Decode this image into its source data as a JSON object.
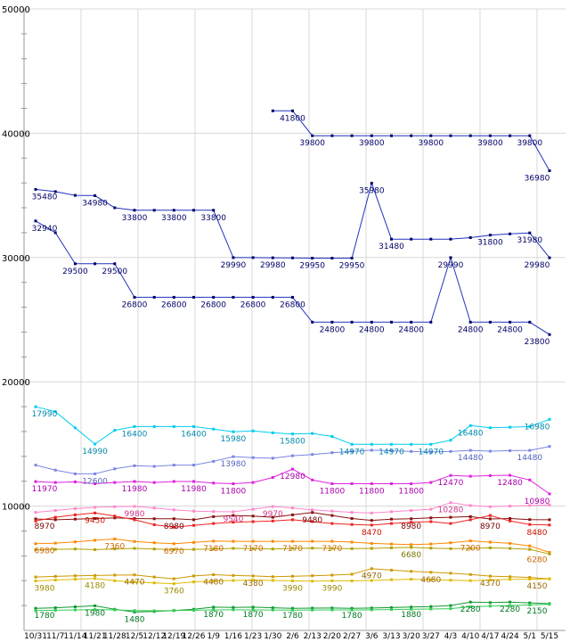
{
  "chart_data": {
    "type": "line",
    "title": "",
    "ylim": [
      0,
      50000
    ],
    "grid": true,
    "colors": {
      "grid": "#d8d8d8",
      "axis": "#999999",
      "text": "#000000"
    },
    "y_ticks": [
      10000,
      20000,
      30000,
      40000,
      50000
    ],
    "x_labels": [
      "10/31",
      "11/7",
      "11/14",
      "11/21",
      "11/28",
      "12/5",
      "12/12",
      "12/19",
      "12/26",
      "1/9",
      "1/16",
      "1/23",
      "1/30",
      "2/6",
      "2/13",
      "2/20",
      "2/27",
      "3/6",
      "3/13",
      "3/20",
      "3/27",
      "4/3",
      "4/10",
      "4/17",
      "4/24",
      "5/1",
      "5/15"
    ],
    "series": [
      {
        "name": "navy-a",
        "color": "#2233bb",
        "marker_color": "#000066",
        "label_color": "#000066",
        "values": [
          35480,
          35300,
          35000,
          34980,
          34000,
          33800,
          33800,
          33800,
          33800,
          33800,
          29990,
          29990,
          29980,
          29970,
          29950,
          29950,
          29950,
          35980,
          31480,
          31480,
          31480,
          31480,
          31600,
          31800,
          31900,
          31980,
          29980
        ],
        "labels": {
          "0": "35480",
          "3": "34980",
          "5": "33800",
          "7": "33800",
          "9": "33800",
          "10": "29990",
          "12": "29980",
          "14": "29950",
          "16": "29950",
          "17": "35980",
          "18": "31480",
          "23": "31800",
          "25": "31980",
          "26": "29980"
        }
      },
      {
        "name": "navy-b",
        "color": "#2233bb",
        "marker_color": "#000066",
        "label_color": "#000066",
        "values": [
          32940,
          32000,
          29500,
          29500,
          29500,
          26800,
          26800,
          26800,
          26800,
          26800,
          26800,
          26800,
          26800,
          26800,
          24800,
          24800,
          24800,
          24800,
          24800,
          24800,
          24800,
          29990,
          24800,
          24800,
          24800,
          24800,
          23800
        ],
        "labels": {
          "0": "32940",
          "2": "29500",
          "4": "29500",
          "5": "26800",
          "7": "26800",
          "9": "26800",
          "11": "26800",
          "13": "26800",
          "15": "24800",
          "17": "24800",
          "19": "24800",
          "21": "29990",
          "22": "24800",
          "24": "24800",
          "26": "23800"
        }
      },
      {
        "name": "navy-c",
        "color": "#2233bb",
        "marker_color": "#000066",
        "label_color": "#000066",
        "values": [
          null,
          null,
          null,
          null,
          null,
          null,
          null,
          null,
          null,
          null,
          null,
          null,
          41800,
          41800,
          39800,
          39800,
          39800,
          39800,
          39800,
          39800,
          39800,
          39800,
          39800,
          39800,
          39800,
          39800,
          36980
        ],
        "labels": {
          "13": "41800",
          "14": "39800",
          "17": "39800",
          "20": "39800",
          "23": "39800",
          "25": "39800",
          "26": "36980"
        }
      },
      {
        "name": "cyan",
        "color": "#00ccee",
        "label_color": "#0088aa",
        "values": [
          17990,
          17600,
          16300,
          14990,
          16100,
          16400,
          16400,
          16400,
          16400,
          16200,
          15980,
          16050,
          15900,
          15800,
          15850,
          15600,
          14970,
          14970,
          14970,
          14970,
          14970,
          15300,
          16480,
          16300,
          16350,
          16400,
          16980
        ],
        "labels": {
          "0": "17990",
          "3": "14990",
          "5": "16400",
          "8": "16400",
          "10": "15980",
          "13": "15800",
          "16": "14970",
          "18": "14970",
          "20": "14970",
          "22": "16480",
          "26": "16980"
        }
      },
      {
        "name": "periwinkle",
        "color": "#7b86e2",
        "label_color": "#5566bb",
        "values": [
          13300,
          12900,
          12600,
          12600,
          13000,
          13250,
          13200,
          13300,
          13300,
          13600,
          13980,
          13900,
          13850,
          14050,
          14150,
          14300,
          14400,
          14500,
          14450,
          14400,
          14350,
          14400,
          14480,
          14420,
          14460,
          14480,
          14800
        ],
        "labels": {
          "3": "12600",
          "10": "13980",
          "22": "14480",
          "25": "14480"
        }
      },
      {
        "name": "magenta",
        "color": "#dd22dd",
        "label_color": "#aa00aa",
        "values": [
          11970,
          11900,
          11950,
          11800,
          11900,
          11980,
          11900,
          11980,
          11980,
          11850,
          11800,
          11900,
          12300,
          12980,
          12100,
          11800,
          11800,
          11800,
          11800,
          11800,
          11900,
          12470,
          12400,
          12450,
          12480,
          12100,
          10980
        ],
        "labels": {
          "0": "11970",
          "5": "11980",
          "8": "11980",
          "10": "11800",
          "13": "12980",
          "15": "11800",
          "17": "11800",
          "19": "11800",
          "21": "12470",
          "24": "12480",
          "26": "10980"
        }
      },
      {
        "name": "pink",
        "color": "#ff88cc",
        "label_color": "#cc3388",
        "values": [
          9500,
          9650,
          9800,
          9900,
          9950,
          9980,
          9850,
          9700,
          9600,
          9560,
          9540,
          9750,
          9970,
          9850,
          9700,
          9600,
          9500,
          9450,
          9550,
          9650,
          9750,
          10280,
          10050,
          9950,
          10000,
          10050,
          10100
        ],
        "labels": {
          "5": "9980",
          "10": "9540",
          "12": "9970",
          "21": "10280"
        }
      },
      {
        "name": "darkred",
        "color": "#881111",
        "label_color": "#770000",
        "values": [
          8970,
          8900,
          8950,
          9000,
          9050,
          9000,
          8980,
          8980,
          8900,
          9150,
          9250,
          9200,
          9100,
          9300,
          9480,
          9250,
          9000,
          8850,
          8950,
          8980,
          9050,
          9100,
          9150,
          8970,
          9000,
          8920,
          8900
        ],
        "labels": {
          "0": "8970",
          "7": "8980",
          "14": "9480",
          "19": "8980",
          "23": "8970"
        }
      },
      {
        "name": "red",
        "color": "#ee2222",
        "label_color": "#cc1100",
        "values": [
          8800,
          9100,
          9300,
          9450,
          9200,
          8900,
          8500,
          8300,
          8450,
          8600,
          8700,
          8750,
          8800,
          8900,
          8750,
          8600,
          8520,
          8470,
          8600,
          8700,
          8750,
          8600,
          8900,
          9250,
          8800,
          8520,
          8480
        ],
        "labels": {
          "3": "9450",
          "17": "8470",
          "26": "8480"
        }
      },
      {
        "name": "orange",
        "color": "#ff8800",
        "label_color": "#cc6600",
        "values": [
          6980,
          7020,
          7120,
          7250,
          7360,
          7150,
          7050,
          6970,
          7080,
          7180,
          7170,
          7170,
          7170,
          7170,
          7170,
          7170,
          7100,
          7000,
          6950,
          6900,
          6950,
          7050,
          7200,
          7100,
          7000,
          6800,
          6280
        ],
        "labels": {
          "0": "6980",
          "4": "7360",
          "7": "6970",
          "9": "7180",
          "11": "7170",
          "13": "7170",
          "15": "7170",
          "22": "7200",
          "26": "6280"
        }
      },
      {
        "name": "olive",
        "color": "#b0a000",
        "label_color": "#777700",
        "values": [
          6500,
          6520,
          6550,
          6500,
          6550,
          6600,
          6550,
          6500,
          6520,
          6550,
          6600,
          6580,
          6550,
          6600,
          6620,
          6600,
          6580,
          6600,
          6640,
          6680,
          6620,
          6580,
          6600,
          6640,
          6600,
          6520,
          6150
        ],
        "labels": {
          "19": "6680"
        }
      },
      {
        "name": "gold",
        "color": "#cc9900",
        "label_color": "#996600",
        "values": [
          4300,
          4350,
          4400,
          4420,
          4450,
          4470,
          4300,
          4150,
          4380,
          4480,
          4420,
          4380,
          4320,
          4360,
          4400,
          4450,
          4520,
          4970,
          4850,
          4750,
          4680,
          4600,
          4500,
          4370,
          4320,
          4260,
          4150
        ],
        "labels": {
          "5": "4470",
          "9": "4480",
          "11": "4380",
          "17": "4970",
          "20": "4680",
          "23": "4370",
          "26": "4150"
        }
      },
      {
        "name": "yellow",
        "color": "#ddbb00",
        "label_color": "#998800",
        "values": [
          3980,
          4050,
          4120,
          4180,
          4000,
          3900,
          3820,
          3760,
          3900,
          3980,
          4020,
          4050,
          4020,
          3990,
          3960,
          3990,
          3990,
          4020,
          4080,
          4120,
          4080,
          4040,
          4000,
          4060,
          4100,
          4120,
          4140
        ],
        "labels": {
          "0": "3980",
          "3": "4180",
          "7": "3760",
          "13": "3990",
          "15": "3990"
        }
      },
      {
        "name": "green",
        "color": "#119933",
        "label_color": "#007722",
        "values": [
          1780,
          1820,
          1900,
          1980,
          1700,
          1480,
          1520,
          1600,
          1700,
          1870,
          1850,
          1870,
          1820,
          1780,
          1790,
          1800,
          1780,
          1800,
          1840,
          1880,
          1920,
          2000,
          2280,
          2240,
          2280,
          2220,
          2150
        ],
        "labels": {
          "0": "1780",
          "3": "1980",
          "5": "1480",
          "9": "1870",
          "11": "1870",
          "13": "1780",
          "16": "1780",
          "19": "1880",
          "22": "2280",
          "24": "2280",
          "26": "2150"
        }
      },
      {
        "name": "lightgreen",
        "color": "#33cc55",
        "label_color": "#119933",
        "values": [
          1600,
          1620,
          1650,
          1680,
          1650,
          1600,
          1580,
          1600,
          1620,
          1650,
          1660,
          1650,
          1640,
          1630,
          1640,
          1650,
          1640,
          1660,
          1680,
          1700,
          1720,
          1750,
          1900,
          1950,
          2000,
          2050,
          2100
        ],
        "labels": {}
      }
    ]
  }
}
